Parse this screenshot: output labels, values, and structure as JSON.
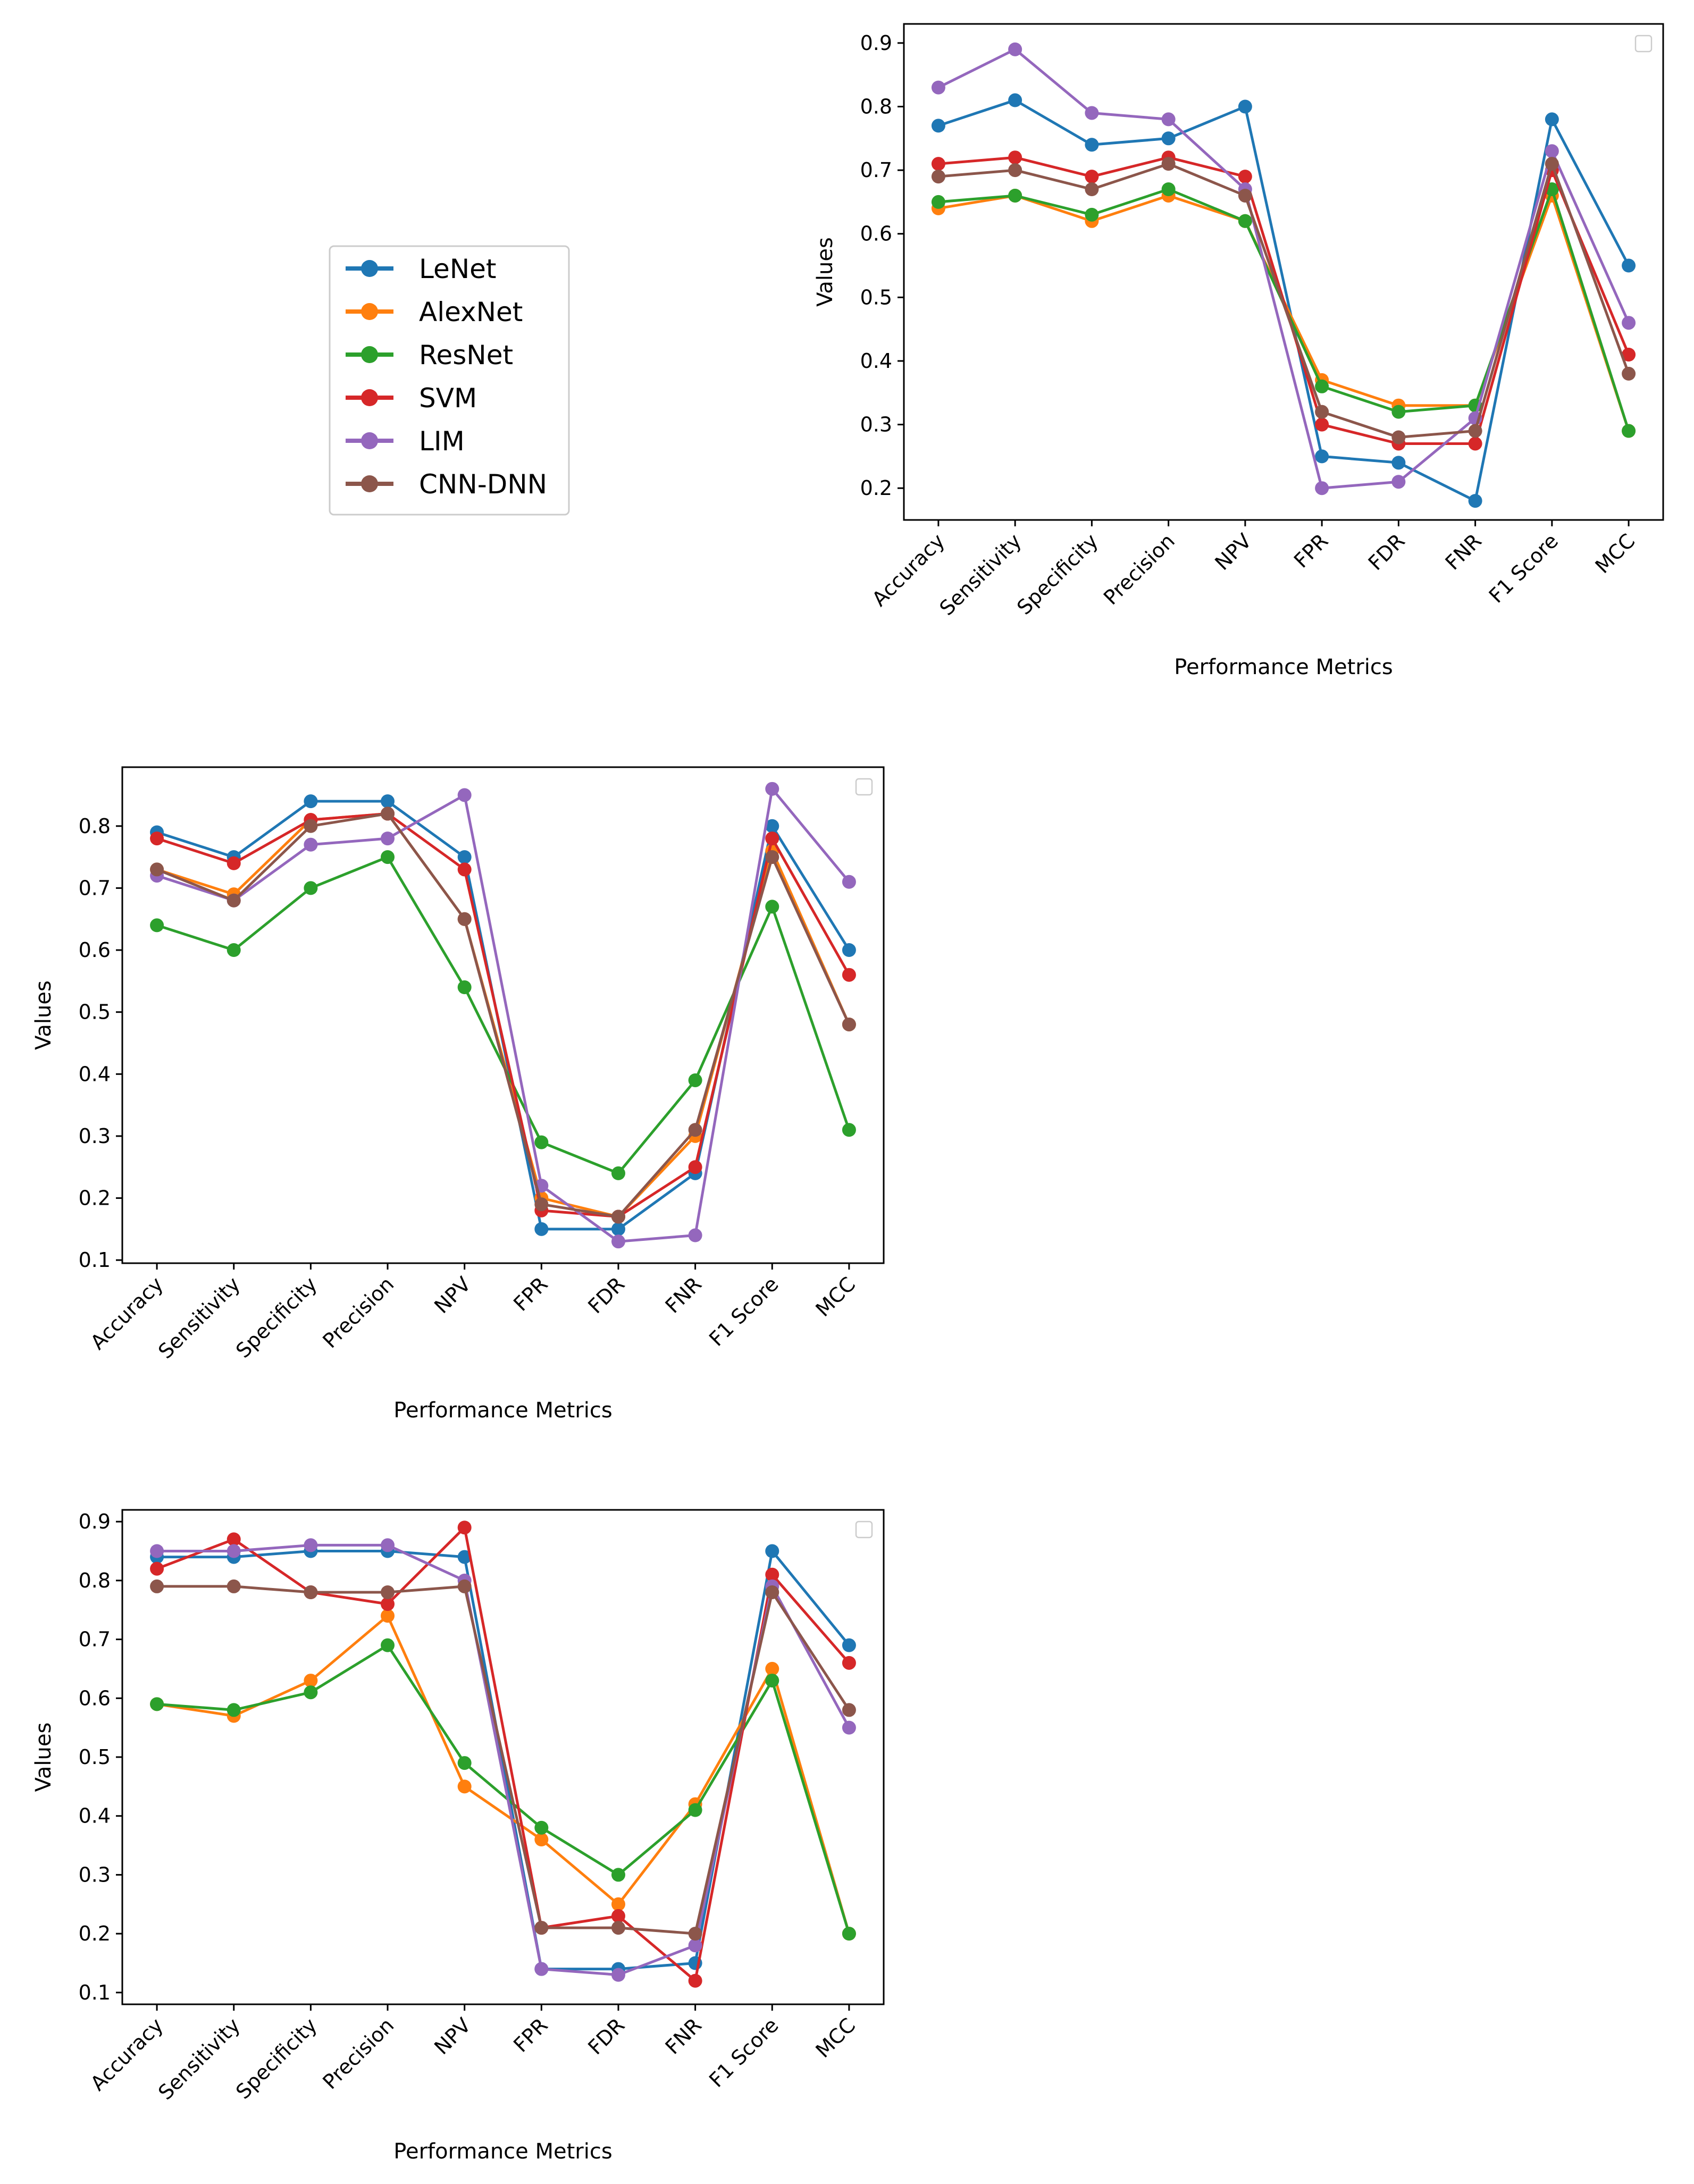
{
  "legend": {
    "entries": [
      {
        "name": "LeNet",
        "color": "#1f77b4"
      },
      {
        "name": "AlexNet",
        "color": "#ff7f0e"
      },
      {
        "name": "ResNet",
        "color": "#2ca02c"
      },
      {
        "name": "SVM",
        "color": "#d62728"
      },
      {
        "name": "LIM",
        "color": "#9467bd"
      },
      {
        "name": "CNN-DNN",
        "color": "#8c564b"
      }
    ]
  },
  "chart_data": [
    {
      "type": "line",
      "xlabel": "Performance Metrics",
      "ylabel": "Values",
      "categories": [
        "Accuracy",
        "Sensitivity",
        "Specificity",
        "Precision",
        "NPV",
        "FPR",
        "FDR",
        "FNR",
        "F1 Score",
        "MCC"
      ],
      "ylim": [
        0.15,
        0.93
      ],
      "yticks": [
        "0.2",
        "0.3",
        "0.4",
        "0.5",
        "0.6",
        "0.7",
        "0.8",
        "0.9"
      ],
      "series": [
        {
          "name": "LeNet",
          "color": "#1f77b4",
          "values": [
            0.77,
            0.81,
            0.74,
            0.75,
            0.8,
            0.25,
            0.24,
            0.18,
            0.78,
            0.55
          ]
        },
        {
          "name": "AlexNet",
          "color": "#ff7f0e",
          "values": [
            0.64,
            0.66,
            0.62,
            0.66,
            0.62,
            0.37,
            0.33,
            0.33,
            0.66,
            0.29
          ]
        },
        {
          "name": "ResNet",
          "color": "#2ca02c",
          "values": [
            0.65,
            0.66,
            0.63,
            0.67,
            0.62,
            0.36,
            0.32,
            0.33,
            0.67,
            0.29
          ]
        },
        {
          "name": "SVM",
          "color": "#d62728",
          "values": [
            0.71,
            0.72,
            0.69,
            0.72,
            0.69,
            0.3,
            0.27,
            0.27,
            0.7,
            0.41
          ]
        },
        {
          "name": "LIM",
          "color": "#9467bd",
          "values": [
            0.83,
            0.89,
            0.79,
            0.78,
            0.67,
            0.2,
            0.21,
            0.31,
            0.73,
            0.46
          ]
        },
        {
          "name": "CNN-DNN",
          "color": "#8c564b",
          "values": [
            0.69,
            0.7,
            0.67,
            0.71,
            0.66,
            0.32,
            0.28,
            0.29,
            0.71,
            0.38
          ]
        }
      ]
    },
    {
      "type": "line",
      "xlabel": "Performance Metrics",
      "ylabel": "Values",
      "categories": [
        "Accuracy",
        "Sensitivity",
        "Specificity",
        "Precision",
        "NPV",
        "FPR",
        "FDR",
        "FNR",
        "F1 Score",
        "MCC"
      ],
      "ylim": [
        0.095,
        0.895
      ],
      "yticks": [
        "0.1",
        "0.2",
        "0.3",
        "0.4",
        "0.5",
        "0.6",
        "0.7",
        "0.8"
      ],
      "series": [
        {
          "name": "LeNet",
          "color": "#1f77b4",
          "values": [
            0.79,
            0.75,
            0.84,
            0.84,
            0.75,
            0.15,
            0.15,
            0.24,
            0.8,
            0.6
          ]
        },
        {
          "name": "AlexNet",
          "color": "#ff7f0e",
          "values": [
            0.73,
            0.69,
            0.81,
            0.82,
            0.65,
            0.2,
            0.17,
            0.3,
            0.76,
            0.48
          ]
        },
        {
          "name": "ResNet",
          "color": "#2ca02c",
          "values": [
            0.64,
            0.6,
            0.7,
            0.75,
            0.54,
            0.29,
            0.24,
            0.39,
            0.67,
            0.31
          ]
        },
        {
          "name": "SVM",
          "color": "#d62728",
          "values": [
            0.78,
            0.74,
            0.81,
            0.82,
            0.73,
            0.18,
            0.17,
            0.25,
            0.78,
            0.56
          ]
        },
        {
          "name": "LIM",
          "color": "#9467bd",
          "values": [
            0.72,
            0.68,
            0.77,
            0.78,
            0.85,
            0.22,
            0.13,
            0.14,
            0.86,
            0.71
          ]
        },
        {
          "name": "CNN-DNN",
          "color": "#8c564b",
          "values": [
            0.73,
            0.68,
            0.8,
            0.82,
            0.65,
            0.19,
            0.17,
            0.31,
            0.75,
            0.48
          ]
        }
      ]
    },
    {
      "type": "line",
      "xlabel": "Performance Metrics",
      "ylabel": "Values",
      "categories": [
        "Accuracy",
        "Sensitivity",
        "Specificity",
        "Precision",
        "NPV",
        "FPR",
        "FDR",
        "FNR",
        "F1 Score",
        "MCC"
      ],
      "ylim": [
        0.08,
        0.92
      ],
      "yticks": [
        "0.1",
        "0.2",
        "0.3",
        "0.4",
        "0.5",
        "0.6",
        "0.7",
        "0.8",
        "0.9"
      ],
      "series": [
        {
          "name": "LeNet",
          "color": "#1f77b4",
          "values": [
            0.84,
            0.84,
            0.85,
            0.85,
            0.84,
            0.14,
            0.14,
            0.15,
            0.85,
            0.69
          ]
        },
        {
          "name": "AlexNet",
          "color": "#ff7f0e",
          "values": [
            0.59,
            0.57,
            0.63,
            0.74,
            0.45,
            0.36,
            0.25,
            0.42,
            0.65,
            0.2
          ]
        },
        {
          "name": "ResNet",
          "color": "#2ca02c",
          "values": [
            0.59,
            0.58,
            0.61,
            0.69,
            0.49,
            0.38,
            0.3,
            0.41,
            0.63,
            0.2
          ]
        },
        {
          "name": "SVM",
          "color": "#d62728",
          "values": [
            0.82,
            0.87,
            0.78,
            0.76,
            0.89,
            0.21,
            0.23,
            0.12,
            0.81,
            0.66
          ]
        },
        {
          "name": "LIM",
          "color": "#9467bd",
          "values": [
            0.85,
            0.85,
            0.86,
            0.86,
            0.8,
            0.14,
            0.13,
            0.18,
            0.79,
            0.55
          ]
        },
        {
          "name": "CNN-DNN",
          "color": "#8c564b",
          "values": [
            0.79,
            0.79,
            0.78,
            0.78,
            0.79,
            0.21,
            0.21,
            0.2,
            0.78,
            0.58
          ]
        }
      ]
    }
  ]
}
